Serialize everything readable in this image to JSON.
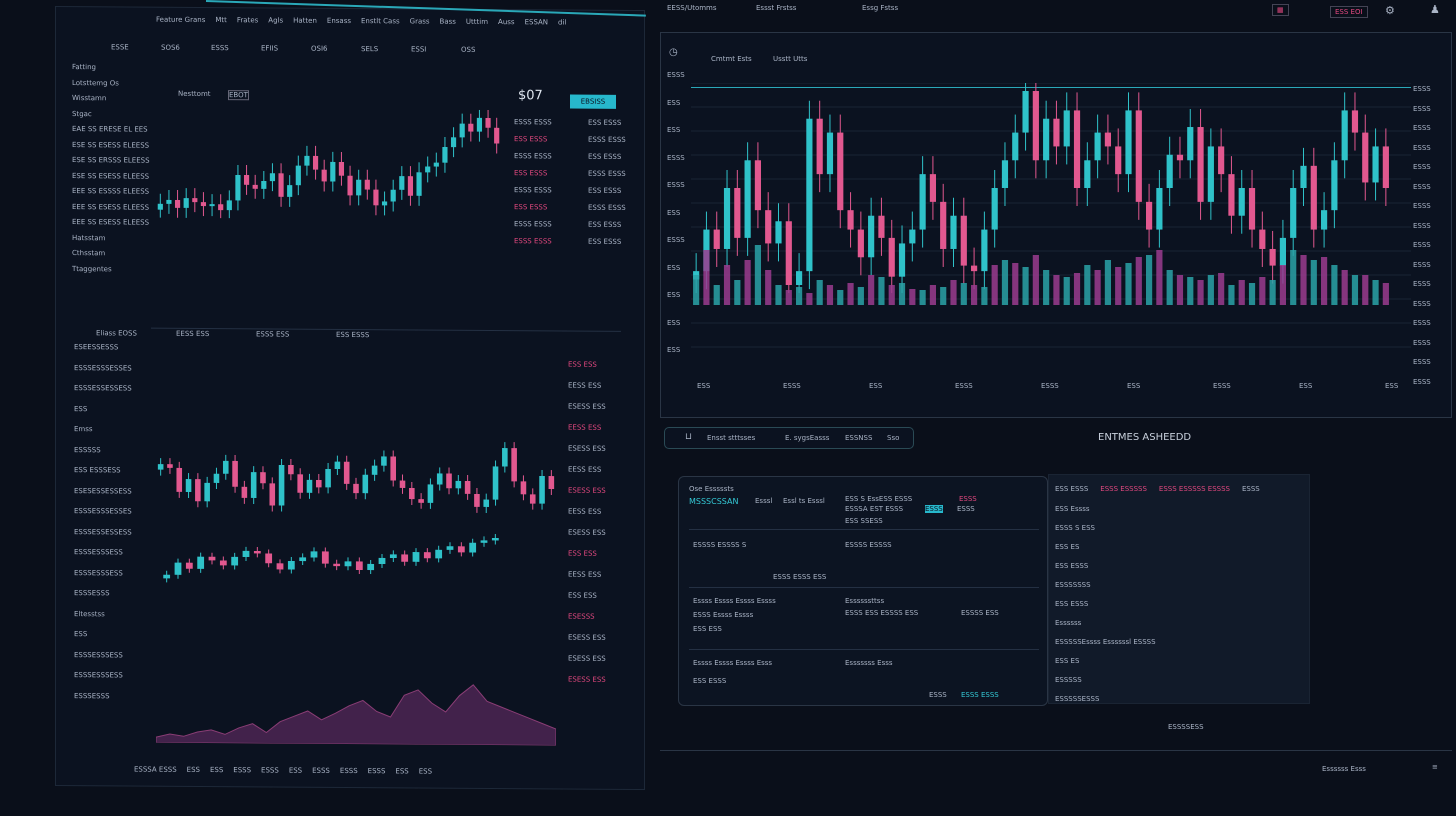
{
  "colors": {
    "up": "#2fc2c9",
    "down": "#e2588f",
    "accent": "#34c9d6",
    "bg": "#0a0f1a"
  },
  "left": {
    "menu": [
      "Feature Grans",
      "Mtt",
      "Frates",
      "Agls",
      "Hatten",
      "Ensass",
      "Enstlt Cass",
      "Grass",
      "Bass",
      "Utttim",
      "Auss",
      "ESSAN",
      "dil"
    ],
    "toolbar": [
      "ESSE",
      "SOS6",
      "ESSS",
      "EFIIS",
      "OSI6",
      "SELS",
      "ESSI",
      "OSS"
    ],
    "side": [
      "Fatting",
      "Lotsttemg Os",
      "Wisstamn",
      "Stgac",
      "EAE SS ERESE EL EES",
      "ESE SS ESESS ELEESS",
      "ESE SS ERSSS ELEESS",
      "ESE SS ESESS ELEESS",
      "EEE SS ESSSS ELEESS",
      "EEE SS ESESS ELEESS",
      "EEE SS ESESS ELEESS",
      "Hatsstam",
      "Cthsstam",
      "Ttaggentes"
    ],
    "ticker": "Nesttomt",
    "ticker_badge": "EBOT",
    "price": "$07",
    "buy_label": "EBSISS",
    "order_rows": [
      [
        "ESSS ESSS",
        "ESS ESSS"
      ],
      [
        "ESS ESSS",
        "ESSS ESSS"
      ],
      [
        "ESSS ESSS",
        "ESS ESSS"
      ],
      [
        "ESS ESSS",
        "ESSS ESSS"
      ],
      [
        "ESSS ESSS",
        "ESS ESSS"
      ],
      [
        "ESS ESSS",
        "ESSS ESSS"
      ],
      [
        "ESSS ESSS",
        "ESS ESSS"
      ],
      [
        "ESSS ESSS",
        "ESS ESSS"
      ]
    ],
    "lower_tabs": [
      "Eliass EOSS",
      "EESS ESS",
      "ESSS ESS",
      "ESS ESSS"
    ],
    "lower_side": [
      "ESEESSESSS",
      "ESSSESSSESSES",
      "ESSSESSESSESS",
      "ESS",
      "Emss",
      "ESSSSS",
      "ESS ESSSESS",
      "ESESESSESSESS",
      "ESSSESSSESSES",
      "ESSSESSESSESS",
      "ESSSESSSESS",
      "ESSSESSSESS",
      "ESSSESSS",
      "Eltesstss",
      "ESS",
      "ESSSESSSESS",
      "ESSSESSSESS",
      "ESSSESSS"
    ],
    "lower_right": [
      "ESS ESS",
      "EESS ESS",
      "ESESS ESS",
      "EESS ESS",
      "ESESS ESS",
      "EESS ESS",
      "ESESS ESS",
      "EESS ESS",
      "ESESS ESS",
      "ESS ESS",
      "EESS ESS",
      "ESS ESS",
      "ESESSS",
      "ESESS ESS",
      "ESESS ESS",
      "ESESS ESS"
    ],
    "footer": [
      "ESSSA ESSS",
      "ESS",
      "ESS",
      "ESSS",
      "ESSS",
      "ESS",
      "ESSS",
      "ESSS",
      "ESSS",
      "ESS",
      "ESS"
    ],
    "closes_top": [
      60,
      58,
      62,
      57,
      59,
      61,
      60,
      63,
      58,
      45,
      50,
      52,
      48,
      44,
      56,
      50,
      40,
      35,
      42,
      48,
      38,
      45,
      55,
      47,
      52,
      60,
      58,
      52,
      45,
      55,
      43,
      40,
      38,
      30,
      25,
      18,
      22,
      15,
      20,
      28
    ],
    "closes_mid": [
      40,
      42,
      55,
      48,
      60,
      50,
      45,
      38,
      52,
      58,
      44,
      50,
      62,
      40,
      45,
      55,
      48,
      52,
      42,
      38,
      50,
      55,
      45,
      40,
      35,
      48,
      52,
      58,
      60,
      50,
      44,
      52,
      48,
      55,
      62,
      58,
      40,
      30,
      48,
      55,
      60,
      45,
      52
    ],
    "closes_low": [
      70,
      60,
      65,
      55,
      58,
      62,
      55,
      50,
      52,
      60,
      65,
      58,
      55,
      50,
      60,
      62,
      58,
      65,
      60,
      55,
      52,
      58,
      50,
      55,
      48,
      45,
      50,
      42,
      40,
      38
    ],
    "volume_profile": [
      5,
      8,
      6,
      10,
      12,
      8,
      14,
      18,
      10,
      20,
      25,
      30,
      22,
      28,
      35,
      40,
      30,
      25,
      45,
      50,
      38,
      30,
      45,
      55,
      40,
      35,
      30,
      25,
      20,
      15
    ]
  },
  "right": {
    "top_links": [
      "EESS/Utomms",
      "Essst Frstss",
      "Essg Fstss"
    ],
    "top_badge": "ESS EOI",
    "chart_tabs": [
      "Cmtmt Ests",
      "Usstt Utts"
    ],
    "y_labels": [
      "ESSS",
      "ESS",
      "ESS",
      "ESSS",
      "ESSS",
      "ESS",
      "ESSS",
      "ESS",
      "ESS",
      "ESS",
      "ESS"
    ],
    "x_labels": [
      "ESS",
      "ESSS",
      "ESS",
      "ESSS",
      "ESSS",
      "ESS",
      "ESSS",
      "ESS",
      "ESS"
    ],
    "right_axis": [
      "ESSS",
      "ESSS",
      "ESSS",
      "ESSS",
      "ESSS",
      "ESSS",
      "ESSS",
      "ESSS",
      "ESSS",
      "ESSS",
      "ESSS",
      "ESSS",
      "ESSS",
      "ESSS",
      "ESSS",
      "ESSS"
    ],
    "closes": [
      70,
      55,
      62,
      40,
      58,
      30,
      48,
      60,
      52,
      75,
      70,
      15,
      35,
      20,
      48,
      55,
      65,
      50,
      58,
      72,
      60,
      55,
      35,
      45,
      62,
      50,
      68,
      70,
      55,
      40,
      30,
      20,
      5,
      30,
      15,
      25,
      12,
      40,
      30,
      20,
      25,
      35,
      12,
      45,
      55,
      40,
      28,
      30,
      18,
      45,
      25,
      35,
      50,
      40,
      55,
      62,
      68,
      58,
      40,
      32,
      55,
      48,
      30,
      12,
      20,
      38,
      25,
      40
    ],
    "volume": [
      30,
      55,
      20,
      40,
      25,
      45,
      60,
      35,
      20,
      15,
      18,
      12,
      25,
      20,
      15,
      22,
      18,
      30,
      28,
      20,
      22,
      16,
      15,
      20,
      18,
      25,
      22,
      20,
      18,
      40,
      45,
      42,
      38,
      50,
      35,
      30,
      28,
      32,
      40,
      35,
      45,
      38,
      42,
      48,
      50,
      55,
      35,
      30,
      28,
      25,
      30,
      32,
      20,
      25,
      22,
      28,
      25,
      40,
      55,
      50,
      45,
      48,
      40,
      35,
      30,
      30,
      25,
      22
    ],
    "order_bar": {
      "label": "Ensst stttsses",
      "ticker": "E. sygsEasss",
      "code": "ESSNSS",
      "flag": "Sso"
    },
    "section_title": "ENTMES ASHEEDD",
    "order_form": {
      "title": "Ose Esssssts",
      "pair": "MSSSCSSAN",
      "pair_sub": "Esssl",
      "pair_note": "Essl ts Esssl",
      "row1": "ESS S EssESS ESSS",
      "row1_pink": "ESSS",
      "row1b": "ESSSA EST ESSS",
      "row1b_teal": "ESSS",
      "row1b_end": "ESSS",
      "row1c": "ESS SSESS",
      "row2a": "ESSSS ESSSS S",
      "row2b": "ESSSS ESSSS",
      "row2c": "ESSS ESSS ESS",
      "row3a": "Essss Essss Essss Essss",
      "row3b": "Essssssttss",
      "row3c": "ESSS Essss Essss",
      "row3d": "ESSS ESS ESSSS ESS",
      "row3e": "ESSSS ESS",
      "row3f": "ESS ESS",
      "row4a": "Essss Essss Essss Esss",
      "row4b": "Esssssss Esss",
      "row4c": "ESS ESSS",
      "submit": "ESSS",
      "submit2": "ESSS ESSS"
    },
    "book": {
      "header": [
        "ESS ESSS",
        "ESSS ESSSSS",
        "ESSS ESSSSS ESSSS",
        "ESSS"
      ],
      "rows": [
        "ESS Essss",
        "ESSS S ESS",
        "ESS ES",
        "ESS ESSS",
        "ESSSSSSS",
        "ESS ESSS",
        "Essssss",
        "ESSSSSEssss Essssssl ESSSS",
        "ESS ES",
        "ESSSSS",
        "ESSSSSESSS"
      ]
    },
    "bottom": "ESSSSESS",
    "footer": "Essssss Esss"
  }
}
